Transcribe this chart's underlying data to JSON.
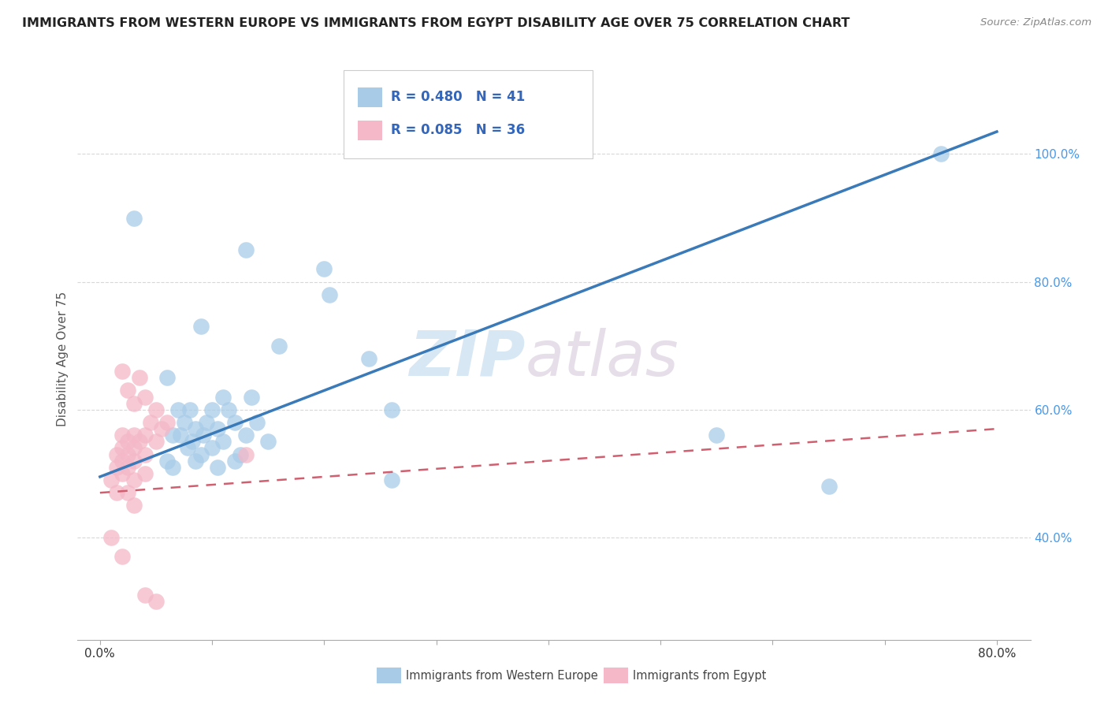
{
  "title": "IMMIGRANTS FROM WESTERN EUROPE VS IMMIGRANTS FROM EGYPT DISABILITY AGE OVER 75 CORRELATION CHART",
  "source": "Source: ZipAtlas.com",
  "ylabel_label": "Disability Age Over 75",
  "legend_blue_R": "R = 0.480",
  "legend_blue_N": "N = 41",
  "legend_pink_R": "R = 0.085",
  "legend_pink_N": "N = 36",
  "legend_blue_label": "Immigrants from Western Europe",
  "legend_pink_label": "Immigrants from Egypt",
  "watermark_zip": "ZIP",
  "watermark_atlas": "atlas",
  "blue_points": [
    [
      3.0,
      90.0
    ],
    [
      13.0,
      85.0
    ],
    [
      20.0,
      82.0
    ],
    [
      20.5,
      78.0
    ],
    [
      9.0,
      73.0
    ],
    [
      16.0,
      70.0
    ],
    [
      24.0,
      68.0
    ],
    [
      6.0,
      65.0
    ],
    [
      11.0,
      62.0
    ],
    [
      13.5,
      62.0
    ],
    [
      7.0,
      60.0
    ],
    [
      8.0,
      60.0
    ],
    [
      10.0,
      60.0
    ],
    [
      11.5,
      60.0
    ],
    [
      26.0,
      60.0
    ],
    [
      7.5,
      58.0
    ],
    [
      9.5,
      58.0
    ],
    [
      12.0,
      58.0
    ],
    [
      14.0,
      58.0
    ],
    [
      8.5,
      57.0
    ],
    [
      10.5,
      57.0
    ],
    [
      6.5,
      56.0
    ],
    [
      7.2,
      56.0
    ],
    [
      9.2,
      56.0
    ],
    [
      13.0,
      56.0
    ],
    [
      8.2,
      55.0
    ],
    [
      11.0,
      55.0
    ],
    [
      15.0,
      55.0
    ],
    [
      7.8,
      54.0
    ],
    [
      10.0,
      54.0
    ],
    [
      9.0,
      53.0
    ],
    [
      12.5,
      53.0
    ],
    [
      6.0,
      52.0
    ],
    [
      8.5,
      52.0
    ],
    [
      12.0,
      52.0
    ],
    [
      6.5,
      51.0
    ],
    [
      10.5,
      51.0
    ],
    [
      26.0,
      49.0
    ],
    [
      65.0,
      48.0
    ],
    [
      55.0,
      56.0
    ],
    [
      75.0,
      100.0
    ]
  ],
  "pink_points": [
    [
      2.0,
      66.0
    ],
    [
      3.5,
      65.0
    ],
    [
      2.5,
      63.0
    ],
    [
      4.0,
      62.0
    ],
    [
      3.0,
      61.0
    ],
    [
      5.0,
      60.0
    ],
    [
      4.5,
      58.0
    ],
    [
      6.0,
      58.0
    ],
    [
      5.5,
      57.0
    ],
    [
      2.0,
      56.0
    ],
    [
      3.0,
      56.0
    ],
    [
      4.0,
      56.0
    ],
    [
      2.5,
      55.0
    ],
    [
      3.5,
      55.0
    ],
    [
      5.0,
      55.0
    ],
    [
      2.0,
      54.0
    ],
    [
      3.0,
      54.0
    ],
    [
      1.5,
      53.0
    ],
    [
      2.5,
      53.0
    ],
    [
      4.0,
      53.0
    ],
    [
      13.0,
      53.0
    ],
    [
      2.0,
      52.0
    ],
    [
      3.0,
      52.0
    ],
    [
      1.5,
      51.0
    ],
    [
      2.5,
      51.0
    ],
    [
      2.0,
      50.0
    ],
    [
      4.0,
      50.0
    ],
    [
      1.0,
      49.0
    ],
    [
      3.0,
      49.0
    ],
    [
      1.5,
      47.0
    ],
    [
      2.5,
      47.0
    ],
    [
      3.0,
      45.0
    ],
    [
      1.0,
      40.0
    ],
    [
      2.0,
      37.0
    ],
    [
      4.0,
      31.0
    ],
    [
      5.0,
      30.0
    ]
  ],
  "blue_line": [
    [
      0,
      49.5
    ],
    [
      80,
      103.5
    ]
  ],
  "pink_line": [
    [
      0,
      47.0
    ],
    [
      80,
      57.0
    ]
  ],
  "xlim": [
    -2,
    83
  ],
  "ylim": [
    24,
    112
  ],
  "ytick_vals": [
    40.0,
    60.0,
    80.0,
    100.0
  ],
  "xtick_positions": [
    0,
    10,
    20,
    30,
    40,
    50,
    60,
    70,
    80
  ],
  "background_color": "#ffffff",
  "blue_color": "#a8cce8",
  "pink_color": "#f4b8c8",
  "blue_line_color": "#3a7ab8",
  "pink_line_color": "#d06070",
  "grid_color": "#d8d8d8",
  "ytick_color": "#4499ee",
  "title_color": "#222222",
  "source_color": "#888888",
  "ylabel_color": "#555555"
}
